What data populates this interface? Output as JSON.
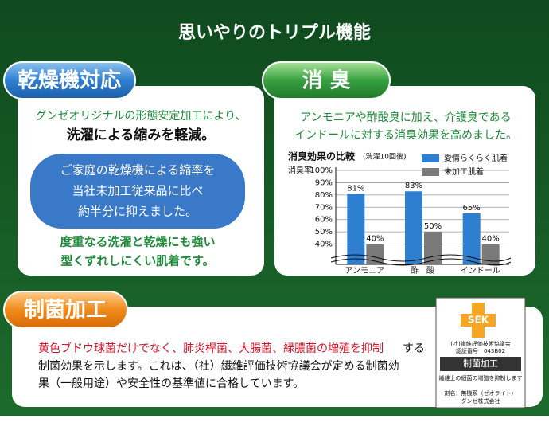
{
  "header": {
    "title": "思いやりのトリプル機能"
  },
  "sections": [
    {
      "heading": "乾燥機対応",
      "lines": [
        "グンゼオリジナルの形態安定加工により、",
        "洗濯による縮みを軽減。"
      ],
      "box_lines": [
        "ご家庭の乾燥機による縮率を",
        "当社未加工従来品に比べ",
        "約半分に抑えました。"
      ],
      "footer_lines": [
        "度重なる洗濯と乾燥にも強い",
        "型くずれしにくい肌着です。"
      ]
    },
    {
      "heading": "消 臭",
      "lines": [
        "アンモニアや酢酸臭に加え、介護臭である",
        "インドールに対する消臭効果を高めました。"
      ]
    },
    {
      "heading": "制菌加工",
      "highlight": "黄色ブドウ球菌だけでなく、肺炎桿菌、大腸菌、緑膿菌の増殖を抑制",
      "lines": [
        "する",
        "制菌効果を示します。これは、（社）繊維評価技術協議会が定める制菌効",
        "果（一般用途）や安全性の基準値に合格しています。"
      ]
    }
  ],
  "badge": {
    "logo": "SEK",
    "org": "(社)繊維評価技術協議会",
    "cert": "認証番号　043B02",
    "label": "制菌加工",
    "note": "繊維上の細菌の増殖を抑制します",
    "agent": "剤名：無機系（ゼオライト）",
    "company": "グンゼ株式会社"
  },
  "chart_data": {
    "type": "bar",
    "title": "消臭効果の比較",
    "subtitle": "(洗濯10回後)",
    "y_label": "消臭率",
    "categories": [
      "アンモニア",
      "酢　酸",
      "インドール"
    ],
    "series": [
      {
        "name": "愛情らくらく肌着",
        "color": "#2f7fd0",
        "values": [
          81,
          83,
          65
        ],
        "value_labels": [
          "81%",
          "83%",
          "65%"
        ]
      },
      {
        "name": "未加工肌着",
        "color": "#7a7a7a",
        "values": [
          40,
          50,
          40
        ],
        "value_labels": [
          "40%",
          "50%",
          "40%"
        ]
      }
    ],
    "ylim": [
      30,
      100
    ],
    "yticks": [
      {
        "value": 40,
        "label": "40%"
      },
      {
        "value": 50,
        "label": "50%"
      },
      {
        "value": 60,
        "label": "60%"
      },
      {
        "value": 70,
        "label": "70%"
      },
      {
        "value": 80,
        "label": "80%"
      },
      {
        "value": 90,
        "label": "90%"
      },
      {
        "value": 100,
        "label": "100%"
      }
    ],
    "grid": true
  }
}
